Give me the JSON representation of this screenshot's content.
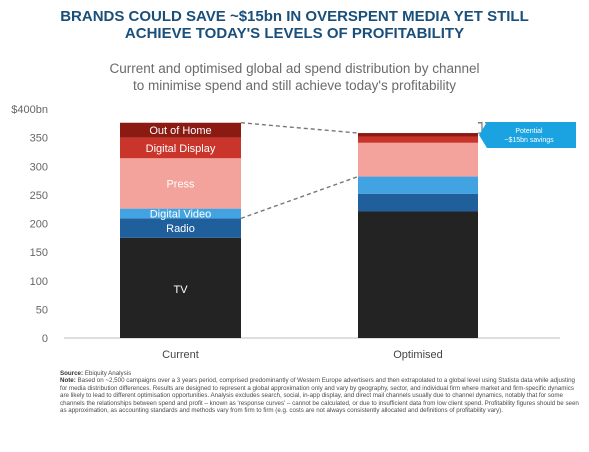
{
  "title_line1": "BRANDS COULD SAVE ~$15bn IN OVERSPENT MEDIA YET STILL",
  "title_line2": "ACHIEVE TODAY'S LEVELS OF PROFITABILITY",
  "subtitle_line1": "Current and optimised global ad spend distribution by channel",
  "subtitle_line2": "to minimise spend and still achieve today's profitability",
  "callout": {
    "line1": "Potential",
    "line2": "~$15bn savings"
  },
  "source_label": "Source:",
  "source_text": "Ebiquity Analysis",
  "note_label": "Note:",
  "note_text": "Based on ~2,500 campaigns over a 3 years period, comprised predominantly of Western Europe advertisers and then extrapolated to a global level using Statista data while adjusting for media distribution differences. Results are designed to represent a global approximation only and vary by geography, sector, and individual firm where market and firm-specific dynamics are likely to lead to different optimisation opportunities. Analysis excludes search, social, in-app display, and direct mail channels usually due to channel dynamics, notably that for some channels the relationships between spend and profit – known as 'response curves' – cannot be calculated, or due to insufficient data from low client spend. Profitability figures should be seen as approximation, as accounting standards and methods vary from firm to firm (e.g. costs are not always consistently allocated and definitions of profitability vary).",
  "colors": {
    "tv": "#232323",
    "radio": "#1f5f9c",
    "digital_video": "#41a3e2",
    "press": "#f3a39b",
    "digital_display": "#c9352b",
    "out_of_home": "#8b1a13",
    "callout_bg": "#1aa3e0",
    "title": "#1a4f7a"
  },
  "chart_data": {
    "type": "bar",
    "stacked": true,
    "categories": [
      "Current",
      "Optimised"
    ],
    "ylabel": "$400bn",
    "ylim": [
      0,
      400
    ],
    "yticks": [
      "0",
      "50",
      "100",
      "150",
      "200",
      "250",
      "300",
      "350",
      "$400bn"
    ],
    "series": [
      {
        "key": "tv",
        "name": "TV",
        "values": [
          175,
          221
        ]
      },
      {
        "key": "radio",
        "name": "Radio",
        "values": [
          34,
          31
        ]
      },
      {
        "key": "digital_video",
        "name": "Digital Video",
        "values": [
          17,
          30
        ]
      },
      {
        "key": "press",
        "name": "Press",
        "values": [
          88,
          59
        ]
      },
      {
        "key": "digital_display",
        "name": "Digital Display",
        "values": [
          36,
          11
        ]
      },
      {
        "key": "out_of_home",
        "name": "Out of Home",
        "values": [
          26,
          6
        ]
      }
    ]
  }
}
